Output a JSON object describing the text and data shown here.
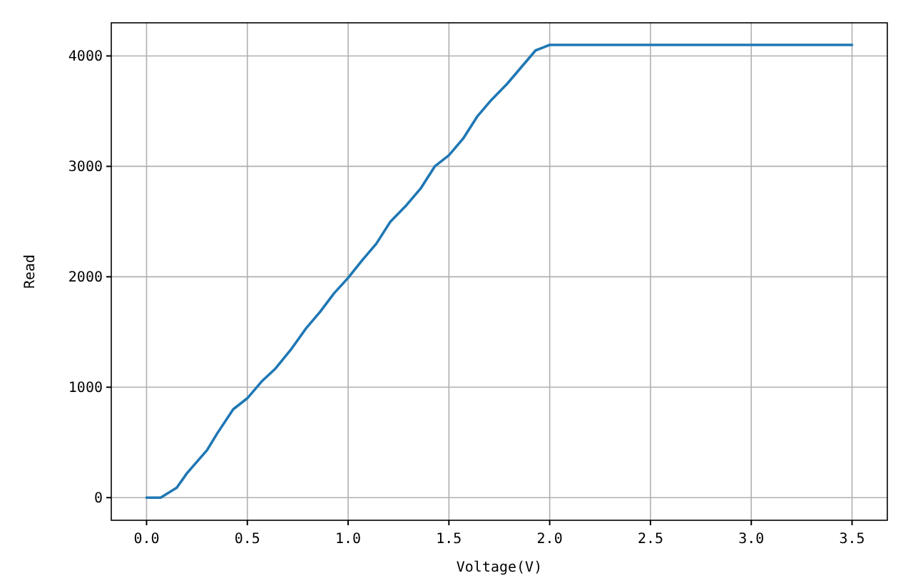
{
  "chart_data": {
    "type": "line",
    "xlabel": "Voltage(V)",
    "ylabel": "Read",
    "x": [
      0,
      0.07,
      0.15,
      0.2,
      0.3,
      0.35,
      0.43,
      0.5,
      0.57,
      0.64,
      0.72,
      0.79,
      0.86,
      0.93,
      1.0,
      1.07,
      1.14,
      1.21,
      1.29,
      1.36,
      1.43,
      1.5,
      1.57,
      1.64,
      1.71,
      1.79,
      1.86,
      1.93,
      2.0,
      3.5
    ],
    "series": [
      {
        "color": "#1f77b4",
        "values": [
          0,
          0,
          90,
          220,
          430,
          580,
          800,
          900,
          1050,
          1170,
          1350,
          1530,
          1680,
          1850,
          1990,
          2150,
          2300,
          2500,
          2650,
          2800,
          3000,
          3100,
          3250,
          3450,
          3600,
          3750,
          3900,
          4050,
          4100,
          4100
        ]
      }
    ],
    "xlim": [
      -0.175,
      3.675
    ],
    "xticks": [
      {
        "value": 0,
        "label": "0.0"
      },
      {
        "value": 0.5,
        "label": "0.5"
      },
      {
        "value": 1,
        "label": "1.0"
      },
      {
        "value": 1.5,
        "label": "1.5"
      },
      {
        "value": 2,
        "label": "2.0"
      },
      {
        "value": 2.5,
        "label": "2.5"
      },
      {
        "value": 3,
        "label": "3.0"
      },
      {
        "value": 3.5,
        "label": "3.5"
      }
    ],
    "ylim": [
      -205,
      4300
    ],
    "yticks": [
      0,
      1000,
      2000,
      3000,
      4000
    ],
    "grid": true,
    "marker": "none",
    "line_style": "solid"
  }
}
